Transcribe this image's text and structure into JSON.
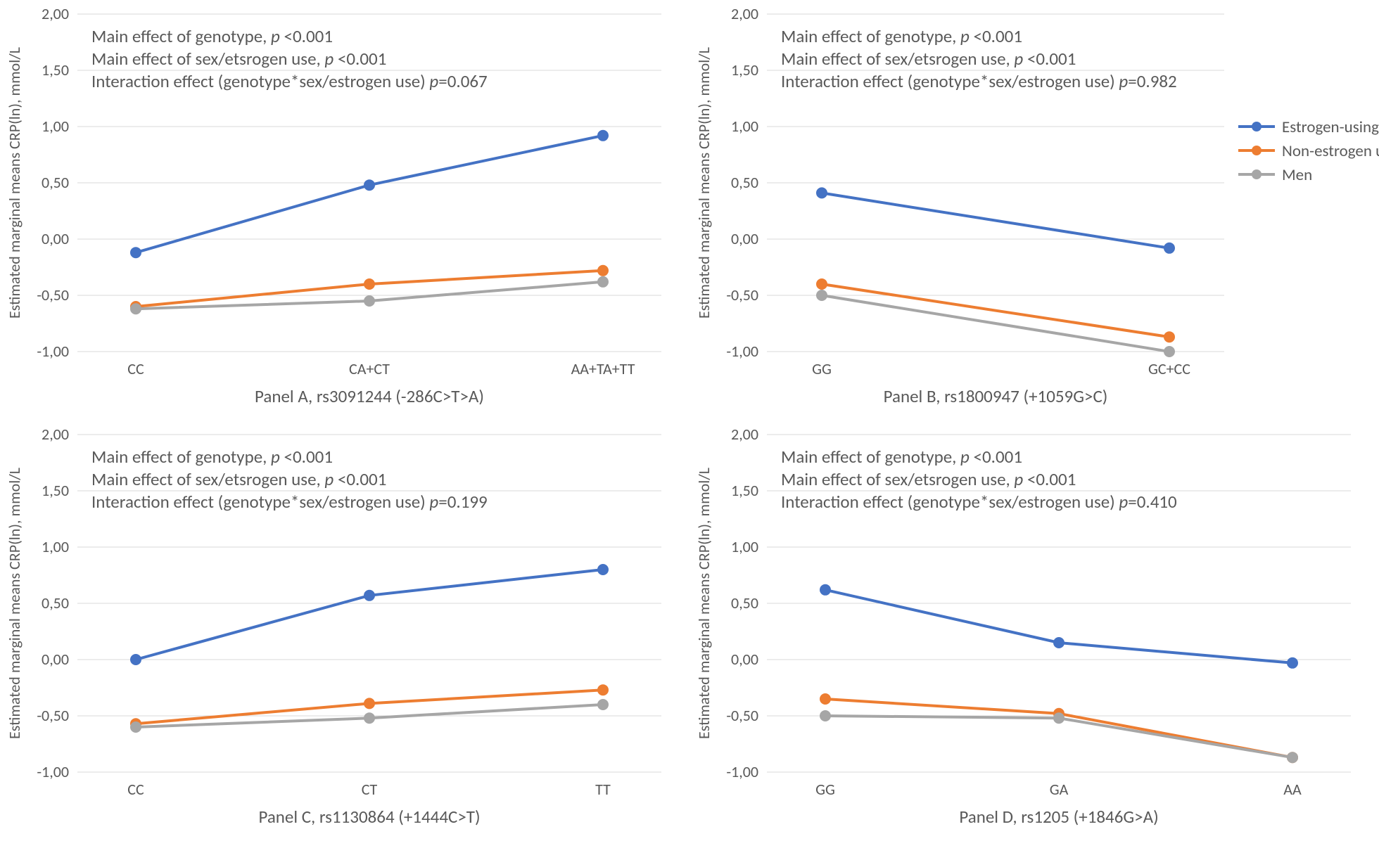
{
  "global": {
    "background_color": "#ffffff",
    "grid_color": "#d9d9d9",
    "text_color": "#595959",
    "ylabel": "Estimated marginal means CRP(ln), mmol/L",
    "ylim": [
      -1.0,
      2.0
    ],
    "ytick_step": 0.5,
    "yticks": [
      "-1,00",
      "-0,50",
      "0,00",
      "0,50",
      "1,00",
      "1,50",
      "2,00"
    ],
    "line_width": 4,
    "marker_radius": 7,
    "annotation_fontsize": 25,
    "tick_fontsize": 22,
    "series": [
      {
        "key": "estrogen",
        "label": "Estrogen-using women",
        "color": "#4472c4"
      },
      {
        "key": "nonestrogen",
        "label": "Non-estrogen using women",
        "color": "#ed7d31"
      },
      {
        "key": "men",
        "label": "Men",
        "color": "#a6a6a6"
      }
    ]
  },
  "panels": {
    "A": {
      "subtitle": "Panel A, rs3091244 (-286C>T>A)",
      "categories": [
        "CC",
        "CA+CT",
        "AA+TA+TT"
      ],
      "annotations": [
        {
          "prefix": "Main effect of genotype, ",
          "ital": "p ",
          "suffix": "<0.001"
        },
        {
          "prefix": "Main effect of sex/etsrogen use, ",
          "ital": "p ",
          "suffix": "<0.001"
        },
        {
          "prefix": "Interaction effect (genotype*sex/estrogen use) ",
          "ital": "p",
          "suffix": "=0.067"
        }
      ],
      "series_values": {
        "estrogen": [
          -0.12,
          0.48,
          0.92
        ],
        "nonestrogen": [
          -0.6,
          -0.4,
          -0.28
        ],
        "men": [
          -0.62,
          -0.55,
          -0.38
        ]
      },
      "show_legend": false
    },
    "B": {
      "subtitle": "Panel B, rs1800947 (+1059G>C)",
      "categories": [
        "GG",
        "GC+CC"
      ],
      "annotations": [
        {
          "prefix": "Main effect of genotype, ",
          "ital": "p ",
          "suffix": "<0.001"
        },
        {
          "prefix": "Main effect of sex/etsrogen use, ",
          "ital": "p ",
          "suffix": "<0.001"
        },
        {
          "prefix": "Interaction effect (genotype*sex/estrogen use) ",
          "ital": "p",
          "suffix": "=0.982"
        }
      ],
      "series_values": {
        "estrogen": [
          0.41,
          -0.08
        ],
        "nonestrogen": [
          -0.4,
          -0.87
        ],
        "men": [
          -0.5,
          -1.0
        ]
      },
      "show_legend": true
    },
    "C": {
      "subtitle": "Panel C, rs1130864 (+1444C>T)",
      "categories": [
        "CC",
        "CT",
        "TT"
      ],
      "annotations": [
        {
          "prefix": "Main effect of genotype, ",
          "ital": "p ",
          "suffix": "<0.001"
        },
        {
          "prefix": "Main effect of sex/etsrogen use, ",
          "ital": "p ",
          "suffix": "<0.001"
        },
        {
          "prefix": "Interaction effect (genotype*sex/estrogen use) ",
          "ital": "p",
          "suffix": "=0.199"
        }
      ],
      "series_values": {
        "estrogen": [
          0.0,
          0.57,
          0.8
        ],
        "nonestrogen": [
          -0.57,
          -0.39,
          -0.27
        ],
        "men": [
          -0.6,
          -0.52,
          -0.4
        ]
      },
      "show_legend": false
    },
    "D": {
      "subtitle": "Panel D, rs1205 (+1846G>A)",
      "categories": [
        "GG",
        "GA",
        "AA"
      ],
      "annotations": [
        {
          "prefix": "Main effect of genotype, ",
          "ital": "p ",
          "suffix": "<0.001"
        },
        {
          "prefix": "Main effect of sex/etsrogen use, ",
          "ital": "p ",
          "suffix": "<0.001"
        },
        {
          "prefix": "Interaction effect (genotype*sex/estrogen use) ",
          "ital": "p",
          "suffix": "=0.410"
        }
      ],
      "series_values": {
        "estrogen": [
          0.62,
          0.15,
          -0.03
        ],
        "nonestrogen": [
          -0.35,
          -0.48,
          -0.87
        ],
        "men": [
          -0.5,
          -0.52,
          -0.87
        ]
      },
      "show_legend": false
    }
  }
}
